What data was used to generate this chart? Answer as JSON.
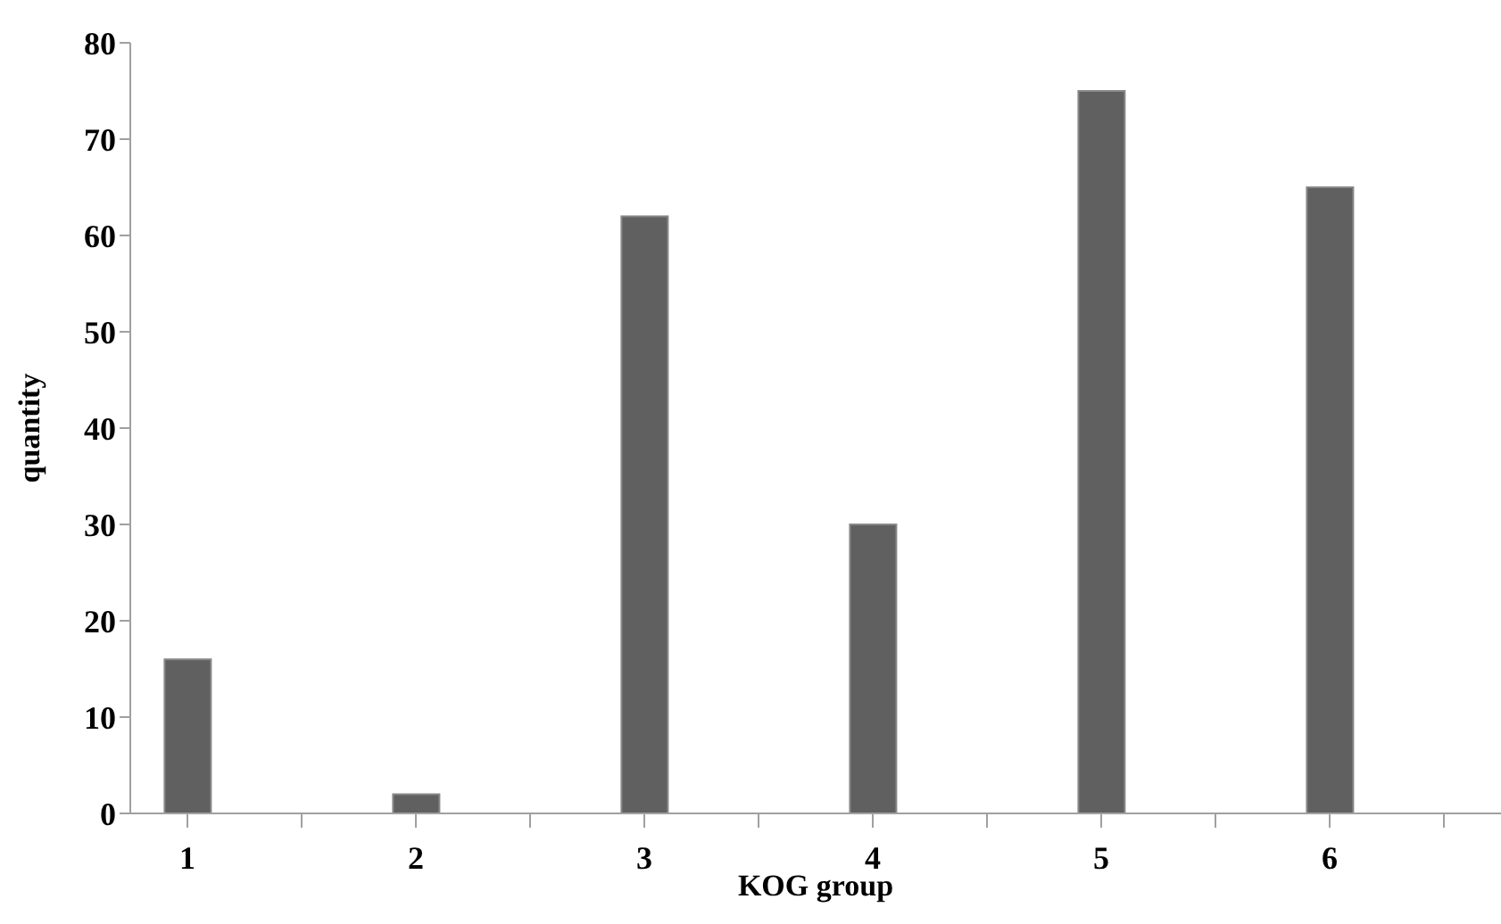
{
  "chart_data": {
    "type": "bar",
    "xlabel": "KOG group",
    "ylabel": "quantity",
    "categories": [
      "1",
      null,
      "2",
      null,
      "3",
      null,
      "4",
      null,
      "5",
      null,
      "6",
      null
    ],
    "values": [
      16,
      null,
      2,
      null,
      62,
      null,
      30,
      null,
      75,
      null,
      65,
      null
    ],
    "color": "#606060",
    "ylim": [
      0,
      80
    ],
    "yticks": [
      0,
      10,
      20,
      30,
      40,
      50,
      60,
      70,
      80
    ],
    "grid": false,
    "legend": false
  }
}
